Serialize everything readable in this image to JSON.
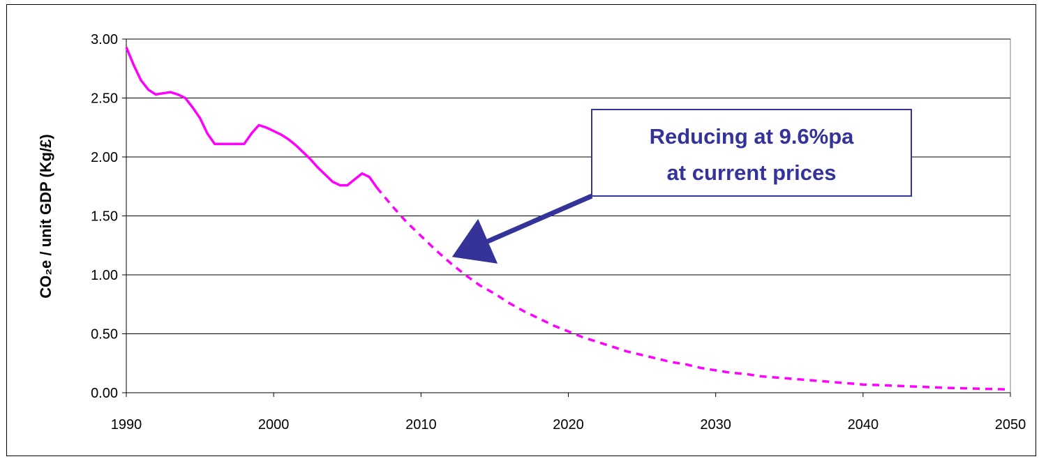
{
  "chart_data": {
    "type": "line",
    "title": "",
    "xlabel": "",
    "ylabel": "CO₂e / unit GDP (Kg/£)",
    "xlim": [
      1990,
      2050
    ],
    "ylim": [
      0,
      3
    ],
    "x_ticks": [
      "1990",
      "2000",
      "2010",
      "2020",
      "2030",
      "2040",
      "2050"
    ],
    "y_ticks": [
      "0.00",
      "0.50",
      "1.00",
      "1.50",
      "2.00",
      "2.50",
      "3.00"
    ],
    "grid": true,
    "series": [
      {
        "style": "solid",
        "color": "#ff00ff",
        "x": [
          1990,
          1990.5,
          1991,
          1991.5,
          1992,
          1992.5,
          1993,
          1993.5,
          1994,
          1994.5,
          1995,
          1995.5,
          1996,
          1996.5,
          1997,
          1997.5,
          1998,
          1998.5,
          1999,
          1999.5,
          2000,
          2000.5,
          2001,
          2001.5,
          2002,
          2002.5,
          2003,
          2003.5,
          2004,
          2004.5,
          2005,
          2005.5,
          2006,
          2006.5,
          2007
        ],
        "y": [
          2.93,
          2.78,
          2.65,
          2.57,
          2.53,
          2.54,
          2.55,
          2.53,
          2.5,
          2.42,
          2.33,
          2.2,
          2.11,
          2.11,
          2.11,
          2.11,
          2.11,
          2.2,
          2.27,
          2.25,
          2.22,
          2.19,
          2.15,
          2.1,
          2.04,
          1.98,
          1.91,
          1.85,
          1.79,
          1.76,
          1.76,
          1.81,
          1.86,
          1.83,
          1.74
        ]
      },
      {
        "style": "dashed",
        "color": "#ff00ff",
        "x": [
          2007,
          2008,
          2009,
          2010,
          2011,
          2012,
          2013,
          2014,
          2015,
          2016,
          2017,
          2018,
          2019,
          2020,
          2021,
          2022,
          2023,
          2024,
          2025,
          2026,
          2027,
          2028,
          2029,
          2030,
          2031,
          2032,
          2033,
          2034,
          2035,
          2036,
          2037,
          2038,
          2039,
          2040,
          2041,
          2042,
          2043,
          2044,
          2045,
          2046,
          2047,
          2048,
          2049,
          2050
        ],
        "y": [
          1.74,
          1.59,
          1.45,
          1.33,
          1.21,
          1.1,
          1.0,
          0.91,
          0.84,
          0.76,
          0.69,
          0.63,
          0.57,
          0.52,
          0.47,
          0.43,
          0.39,
          0.35,
          0.32,
          0.29,
          0.26,
          0.24,
          0.21,
          0.19,
          0.17,
          0.16,
          0.14,
          0.13,
          0.12,
          0.11,
          0.1,
          0.09,
          0.08,
          0.07,
          0.065,
          0.06,
          0.055,
          0.05,
          0.045,
          0.04,
          0.037,
          0.034,
          0.031,
          0.028
        ]
      }
    ],
    "annotations": [
      {
        "text_lines": [
          "Reducing at 9.6%pa",
          "at current prices"
        ],
        "color": "#333399",
        "arrow_to_x": 2013,
        "arrow_to_y": 1.15
      }
    ]
  }
}
